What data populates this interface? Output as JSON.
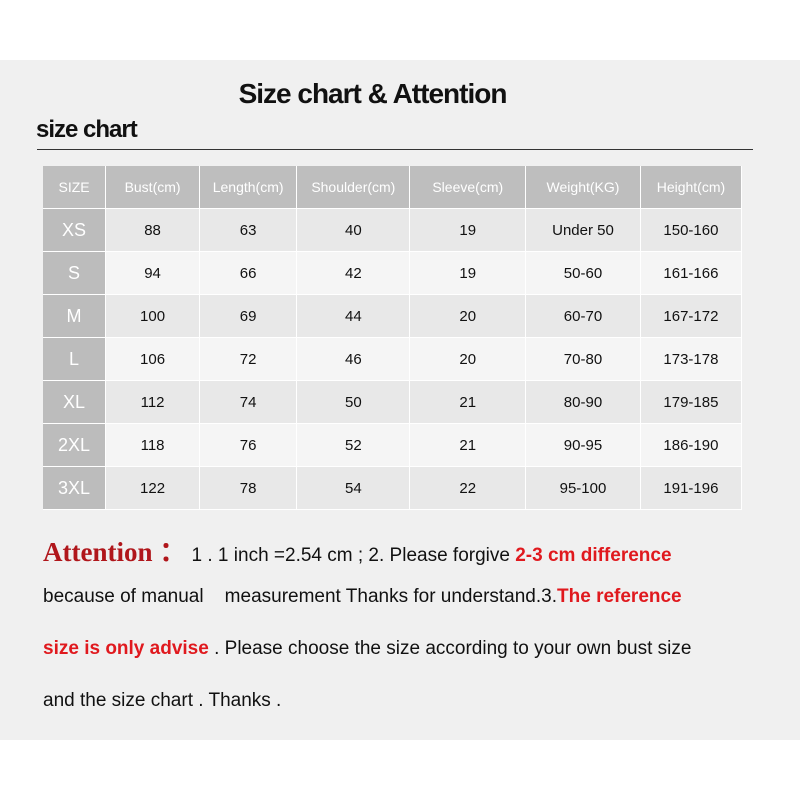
{
  "title": "Size chart & Attention",
  "subtitle": "size chart",
  "table": {
    "headers": [
      "SIZE",
      "Bust(cm)",
      "Length(cm)",
      "Shoulder(cm)",
      "Sleeve(cm)",
      "Weight(KG)",
      "Height(cm)"
    ],
    "rows": [
      [
        "XS",
        "88",
        "63",
        "40",
        "19",
        "Under 50",
        "150-160"
      ],
      [
        "S",
        "94",
        "66",
        "42",
        "19",
        "50-60",
        "161-166"
      ],
      [
        "M",
        "100",
        "69",
        "44",
        "20",
        "60-70",
        "167-172"
      ],
      [
        "L",
        "106",
        "72",
        "46",
        "20",
        "70-80",
        "173-178"
      ],
      [
        "XL",
        "112",
        "74",
        "50",
        "21",
        "80-90",
        "179-185"
      ],
      [
        "2XL",
        "118",
        "76",
        "52",
        "21",
        "90-95",
        "186-190"
      ],
      [
        "3XL",
        "122",
        "78",
        "54",
        "22",
        "95-100",
        "191-196"
      ]
    ]
  },
  "attention": {
    "label": "Attention ：",
    "l1a": " 1 . 1 inch =2.54 cm ; 2. Please forgive ",
    "l1b": "2-3 cm difference",
    "l2a": "because of manual    measurement Thanks for understand.3.",
    "l2b": "The reference",
    "l3a": "size is only advise",
    "l3b": " . Please choose the size according to your own bust size",
    "l4": "and the size chart . Thanks ."
  },
  "colors": {
    "accent_red": "#e0191e",
    "header_gray": "#bebebe"
  }
}
